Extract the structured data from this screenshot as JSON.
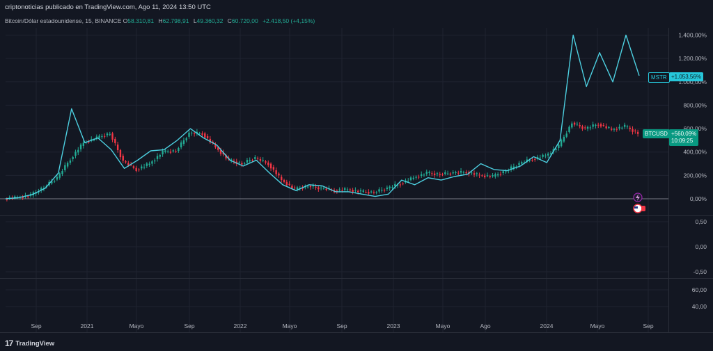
{
  "header": {
    "title": "criptonoticias publicado en TradingView.com, Ago 11, 2024 13:50 UTC"
  },
  "legend": {
    "symbol": "Bitcoin/Dólar estadounidense, 15, BINANCE",
    "o_label": "O",
    "o_value": "58.310,81",
    "h_label": "H",
    "h_value": "62.798,91",
    "l_label": "L",
    "l_value": "49.360,32",
    "c_label": "C",
    "c_value": "60.720,00",
    "change": "+2.418,50 (+4,15%)"
  },
  "badges": {
    "mstr_symbol": "MSTR",
    "mstr_value": "+1.053,56%",
    "btc_symbol": "BTCUSD",
    "btc_value": "+560,09%",
    "btc_countdown": "10:09:25"
  },
  "footer": {
    "brand": "TradingView"
  },
  "colors": {
    "background": "#131722",
    "grid": "#1f2330",
    "up": "#22ab94",
    "down": "#f23645",
    "mstr_line": "#4dd0e1",
    "btc_badge": "#089981",
    "mstr_badge": "#26c6da"
  },
  "icons": [
    "lightning-icon",
    "us-flag-icon",
    "tradingview-logo-icon"
  ],
  "chart_data": [
    {
      "type": "line",
      "title": "",
      "ylabel": "",
      "yscale": "percent",
      "y_ticks": [
        "1.400,00%",
        "1.200,00%",
        "1.000,00%",
        "800,00%",
        "600,00%",
        "400,00%",
        "200,00%",
        "0,00%"
      ],
      "ylim": [
        -150,
        1450
      ],
      "x_ticks": [
        "Sep",
        "2021",
        "Mayo",
        "Sep",
        "2022",
        "Mayo",
        "Sep",
        "2023",
        "Mayo",
        "Ago",
        "2024",
        "Mayo",
        "Sep"
      ],
      "x": [
        "2020-08",
        "2020-09",
        "2020-10",
        "2020-11",
        "2020-12",
        "2021-01",
        "2021-02",
        "2021-03",
        "2021-04",
        "2021-05",
        "2021-06",
        "2021-07",
        "2021-08",
        "2021-09",
        "2021-10",
        "2021-11",
        "2021-12",
        "2022-01",
        "2022-02",
        "2022-03",
        "2022-04",
        "2022-05",
        "2022-06",
        "2022-07",
        "2022-08",
        "2022-09",
        "2022-10",
        "2022-11",
        "2022-12",
        "2023-01",
        "2023-02",
        "2023-03",
        "2023-04",
        "2023-05",
        "2023-06",
        "2023-07",
        "2023-08",
        "2023-09",
        "2023-10",
        "2023-11",
        "2023-12",
        "2024-01",
        "2024-02",
        "2024-03",
        "2024-04",
        "2024-05",
        "2024-06",
        "2024-07",
        "2024-08"
      ],
      "series": [
        {
          "name": "MSTR",
          "style": "line",
          "values": [
            0,
            10,
            35,
            90,
            220,
            770,
            480,
            520,
            420,
            260,
            330,
            410,
            420,
            500,
            600,
            520,
            460,
            330,
            280,
            330,
            220,
            120,
            70,
            120,
            110,
            60,
            60,
            40,
            20,
            40,
            160,
            120,
            180,
            160,
            190,
            210,
            300,
            250,
            240,
            280,
            360,
            310,
            500,
            1400,
            960,
            1250,
            1000,
            1400,
            1053
          ]
        },
        {
          "name": "BTCUSD",
          "style": "candlestick",
          "values": [
            0,
            10,
            30,
            100,
            180,
            340,
            480,
            520,
            560,
            320,
            250,
            300,
            400,
            410,
            560,
            560,
            440,
            330,
            300,
            350,
            300,
            160,
            80,
            110,
            90,
            70,
            80,
            60,
            55,
            90,
            130,
            180,
            220,
            210,
            220,
            230,
            200,
            190,
            240,
            300,
            340,
            370,
            450,
            650,
            600,
            640,
            590,
            620,
            560
          ]
        }
      ]
    },
    {
      "type": "line",
      "title": "",
      "y_ticks": [
        "0,50",
        "0,00",
        "-0,50"
      ],
      "ylim": [
        -0.75,
        0.75
      ],
      "values": []
    },
    {
      "type": "line",
      "title": "",
      "y_ticks": [
        "60,00",
        "40,00"
      ],
      "ylim": [
        30,
        70
      ],
      "values": []
    }
  ]
}
